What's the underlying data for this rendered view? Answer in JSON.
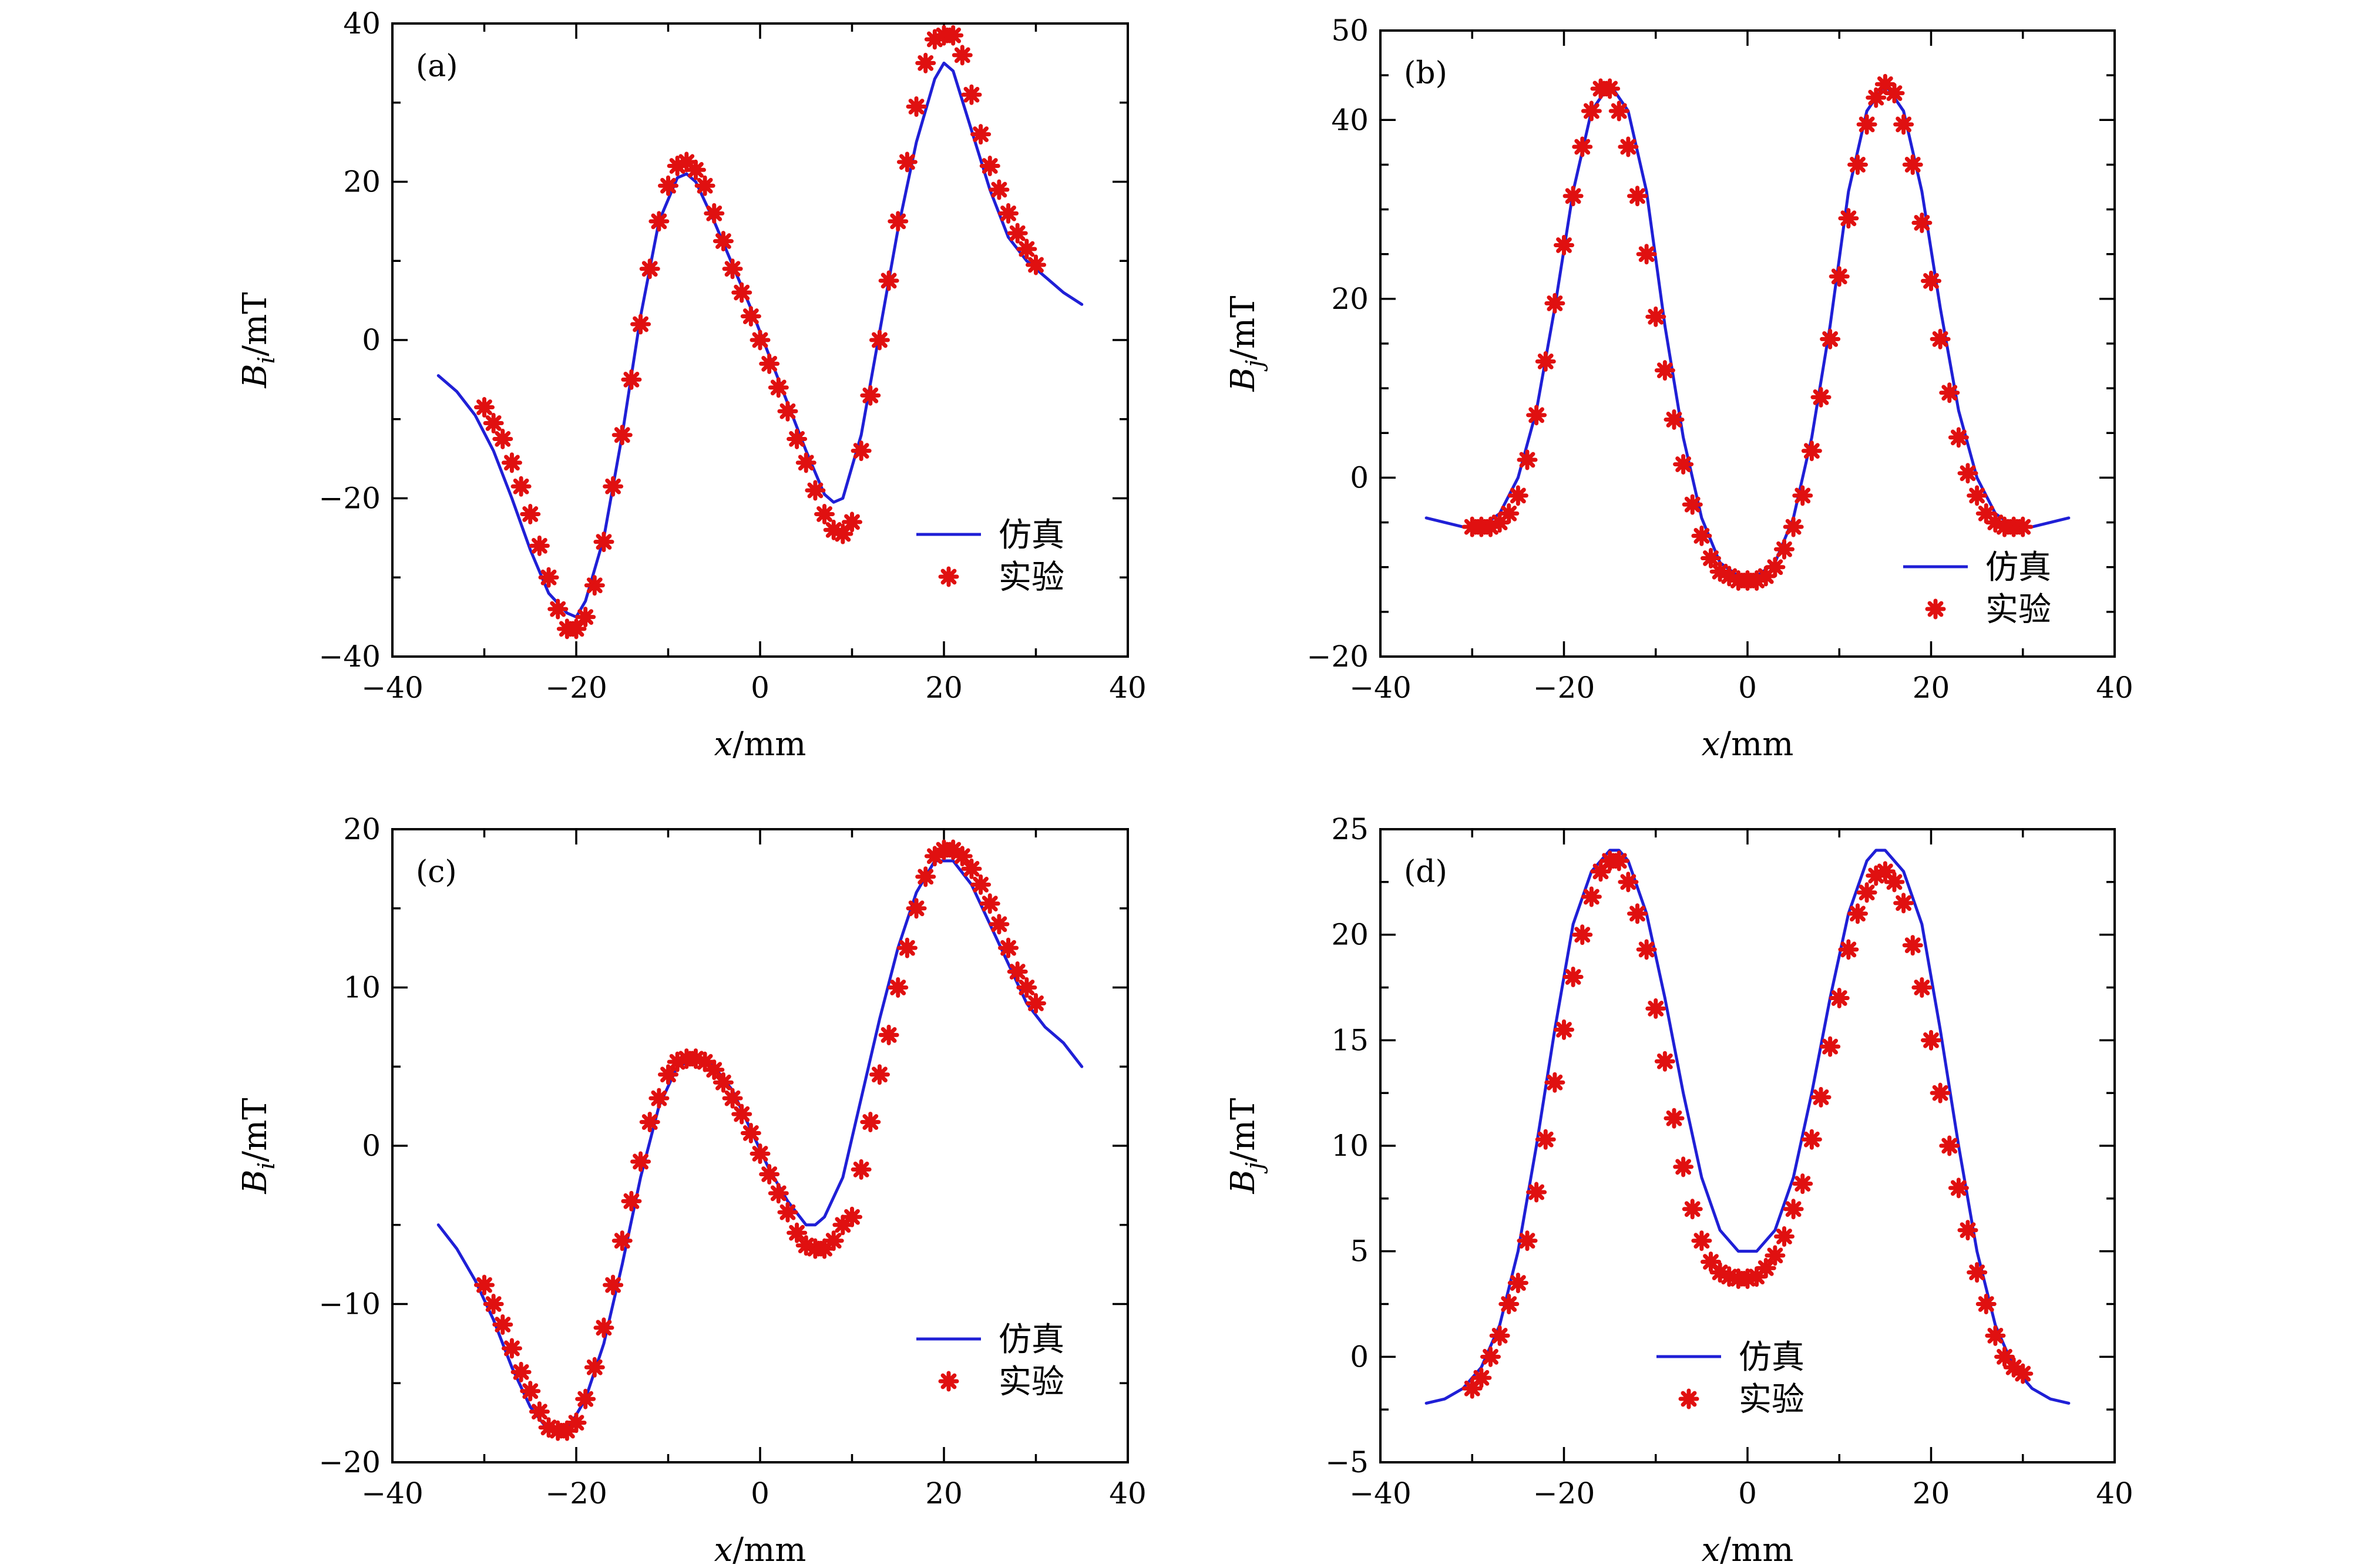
{
  "colors": {
    "simulation": "#1f1fd6",
    "experiment": "#e01010",
    "axis": "#000000"
  },
  "legend": {
    "line": "仿真",
    "marker": "实验"
  },
  "chart_data": [
    {
      "type": "line",
      "panel": "(a)",
      "xlabel": "x/mm",
      "ylabel": "Bi/mT",
      "ylabel_main": "B",
      "ylabel_sub": "i",
      "ylabel_unit": "/mT",
      "xlim": [
        -40,
        40
      ],
      "ylim": [
        -40,
        40
      ],
      "xticks": [
        -40,
        -20,
        0,
        20,
        40
      ],
      "xtick_labels": [
        "−40",
        "−20",
        "0",
        "20",
        "40"
      ],
      "yticks": [
        -40,
        -20,
        0,
        20,
        40
      ],
      "ytick_labels": [
        "−40",
        "−20",
        "0",
        "20",
        "40"
      ],
      "legend_position": "lower-right",
      "series": [
        {
          "name": "仿真",
          "style": "line",
          "x": [
            -35,
            -33,
            -31,
            -29,
            -27,
            -25,
            -23,
            -21,
            -20,
            -19,
            -17,
            -15,
            -13,
            -11,
            -9,
            -8,
            -7,
            -5,
            -3,
            -1,
            1,
            3,
            5,
            7,
            8,
            9,
            11,
            13,
            15,
            17,
            19,
            20,
            21,
            23,
            25,
            27,
            29,
            31,
            33,
            35
          ],
          "y": [
            -4.5,
            -6.5,
            -9.5,
            -14,
            -20,
            -26.5,
            -32,
            -34.5,
            -35,
            -33,
            -25,
            -12,
            3,
            15,
            20.5,
            21,
            20,
            15,
            9.5,
            4,
            -2,
            -8,
            -14,
            -19.5,
            -20.5,
            -20,
            -12,
            1,
            14,
            25,
            33,
            35,
            34,
            26.5,
            19,
            13,
            10,
            8,
            6,
            4.5
          ]
        },
        {
          "name": "实验",
          "style": "marker",
          "x": [
            -30,
            -29,
            -28,
            -27,
            -26,
            -25,
            -24,
            -23,
            -22,
            -21,
            -20,
            -19,
            -18,
            -17,
            -16,
            -15,
            -14,
            -13,
            -12,
            -11,
            -10,
            -9,
            -8,
            -7,
            -6,
            -5,
            -4,
            -3,
            -2,
            -1,
            0,
            1,
            2,
            3,
            4,
            5,
            6,
            7,
            8,
            9,
            10,
            11,
            12,
            13,
            14,
            15,
            16,
            17,
            18,
            19,
            20,
            21,
            22,
            23,
            24,
            25,
            26,
            27,
            28,
            29,
            30
          ],
          "y": [
            -8.5,
            -10.5,
            -12.5,
            -15.5,
            -18.5,
            -22,
            -26,
            -30,
            -34,
            -36.5,
            -36.5,
            -35,
            -31,
            -25.5,
            -18.5,
            -12,
            -5,
            2,
            9,
            15,
            19.5,
            22,
            22.5,
            21.5,
            19.5,
            16,
            12.5,
            9,
            6,
            3,
            0,
            -3,
            -6,
            -9,
            -12.5,
            -15.5,
            -19,
            -22,
            -24,
            -24.5,
            -23,
            -14,
            -7,
            0,
            7.5,
            15,
            22.5,
            29.5,
            35,
            38,
            38.5,
            38.5,
            36,
            31,
            26,
            22,
            19,
            16,
            13.5,
            11.5,
            9.5
          ]
        }
      ]
    },
    {
      "type": "line",
      "panel": "(b)",
      "xlabel": "x/mm",
      "ylabel": "Bj/mT",
      "ylabel_main": "B",
      "ylabel_sub": "j",
      "ylabel_unit": "/mT",
      "xlim": [
        -40,
        40
      ],
      "ylim": [
        -20,
        50
      ],
      "xticks": [
        -40,
        -20,
        0,
        20,
        40
      ],
      "xtick_labels": [
        "−40",
        "−20",
        "0",
        "20",
        "40"
      ],
      "yticks": [
        -20,
        0,
        20,
        40,
        50
      ],
      "ytick_labels": [
        "−20",
        "0",
        "20",
        "40",
        "50"
      ],
      "legend_position": "lower-right",
      "series": [
        {
          "name": "仿真",
          "style": "line",
          "x": [
            -35,
            -33,
            -31,
            -29,
            -27,
            -25,
            -23,
            -21,
            -19,
            -17,
            -15,
            -13,
            -11,
            -9,
            -7,
            -5,
            -3,
            -1,
            0,
            1,
            3,
            5,
            7,
            9,
            11,
            13,
            15,
            17,
            19,
            21,
            23,
            25,
            27,
            29,
            31,
            33,
            35
          ],
          "y": [
            -4.5,
            -5,
            -5.5,
            -5.5,
            -4,
            0,
            7.5,
            19,
            32,
            41,
            44,
            41,
            32,
            17,
            4.5,
            -4.5,
            -9.5,
            -11,
            -11.5,
            -11,
            -9.5,
            -4.5,
            4.5,
            17,
            32,
            41,
            44,
            41,
            32,
            19,
            7.5,
            0,
            -4,
            -5.5,
            -5.5,
            -5,
            -4.5
          ]
        },
        {
          "name": "实验",
          "style": "marker",
          "x": [
            -30,
            -29,
            -28,
            -27,
            -26,
            -25,
            -24,
            -23,
            -22,
            -21,
            -20,
            -19,
            -18,
            -17,
            -16,
            -15,
            -14,
            -13,
            -12,
            -11,
            -10,
            -9,
            -8,
            -7,
            -6,
            -5,
            -4,
            -3,
            -2,
            -1,
            0,
            1,
            2,
            3,
            4,
            5,
            6,
            7,
            8,
            9,
            10,
            11,
            12,
            13,
            14,
            15,
            16,
            17,
            18,
            19,
            20,
            21,
            22,
            23,
            24,
            25,
            26,
            27,
            28,
            29,
            30
          ],
          "y": [
            -5.5,
            -5.5,
            -5.5,
            -5,
            -4,
            -2,
            2,
            7,
            13,
            19.5,
            26,
            31.5,
            37,
            41,
            43.5,
            43.5,
            41,
            37,
            31.5,
            25,
            18,
            12,
            6.5,
            1.5,
            -3,
            -6.5,
            -9,
            -10.5,
            -11,
            -11.5,
            -11.5,
            -11.5,
            -11,
            -10,
            -8,
            -5.5,
            -2,
            3,
            9,
            15.5,
            22.5,
            29,
            35,
            39.5,
            42.5,
            44,
            43,
            39.5,
            35,
            28.5,
            22,
            15.5,
            9.5,
            4.5,
            0.5,
            -2,
            -4,
            -5,
            -5.5,
            -5.5,
            -5.5
          ]
        }
      ]
    },
    {
      "type": "line",
      "panel": "(c)",
      "xlabel": "x/mm",
      "ylabel": "Bi/mT",
      "ylabel_main": "B",
      "ylabel_sub": "i",
      "ylabel_unit": "/mT",
      "xlim": [
        -40,
        40
      ],
      "ylim": [
        -20,
        20
      ],
      "xticks": [
        -40,
        -20,
        0,
        20,
        40
      ],
      "xtick_labels": [
        "−40",
        "−20",
        "0",
        "20",
        "40"
      ],
      "yticks": [
        -20,
        -10,
        0,
        10,
        20
      ],
      "ytick_labels": [
        "−20",
        "−10",
        "0",
        "10",
        "20"
      ],
      "legend_position": "lower-right",
      "series": [
        {
          "name": "仿真",
          "style": "line",
          "x": [
            -35,
            -33,
            -31,
            -29,
            -27,
            -25,
            -23,
            -21,
            -19,
            -17,
            -15,
            -13,
            -11,
            -9,
            -7,
            -6,
            -5,
            -3,
            -1,
            1,
            3,
            5,
            6,
            7,
            9,
            11,
            13,
            15,
            17,
            19,
            21,
            23,
            25,
            27,
            29,
            31,
            33,
            35
          ],
          "y": [
            -5,
            -6.5,
            -8.5,
            -11,
            -14,
            -16.5,
            -18,
            -18,
            -16,
            -12.5,
            -7.5,
            -2,
            2.5,
            5,
            5.5,
            5.5,
            5,
            3.5,
            1,
            -1.5,
            -3.5,
            -5,
            -5,
            -4.5,
            -2,
            3,
            8,
            12.5,
            16,
            18,
            18,
            16.5,
            14,
            11.5,
            9,
            7.5,
            6.5,
            5
          ]
        },
        {
          "name": "实验",
          "style": "marker",
          "x": [
            -30,
            -29,
            -28,
            -27,
            -26,
            -25,
            -24,
            -23,
            -22,
            -21,
            -20,
            -19,
            -18,
            -17,
            -16,
            -15,
            -14,
            -13,
            -12,
            -11,
            -10,
            -9,
            -8,
            -7,
            -6,
            -5,
            -4,
            -3,
            -2,
            -1,
            0,
            1,
            2,
            3,
            4,
            5,
            6,
            7,
            8,
            9,
            10,
            11,
            12,
            13,
            14,
            15,
            16,
            17,
            18,
            19,
            20,
            21,
            22,
            23,
            24,
            25,
            26,
            27,
            28,
            29,
            30
          ],
          "y": [
            -8.8,
            -10,
            -11.3,
            -12.8,
            -14.3,
            -15.5,
            -16.8,
            -17.8,
            -18,
            -18,
            -17.5,
            -16,
            -14,
            -11.5,
            -8.8,
            -6,
            -3.5,
            -1,
            1.5,
            3,
            4.5,
            5.3,
            5.5,
            5.5,
            5.3,
            4.8,
            4,
            3,
            2,
            0.8,
            -0.5,
            -1.8,
            -3,
            -4.2,
            -5.5,
            -6.3,
            -6.5,
            -6.5,
            -6,
            -5,
            -4.5,
            -1.5,
            1.5,
            4.5,
            7,
            10,
            12.5,
            15,
            17,
            18.3,
            18.7,
            18.7,
            18.3,
            17.5,
            16.5,
            15.3,
            14,
            12.5,
            11,
            10,
            9
          ]
        }
      ]
    },
    {
      "type": "line",
      "panel": "(d)",
      "xlabel": "x/mm",
      "ylabel": "Bj/mT",
      "ylabel_main": "B",
      "ylabel_sub": "j",
      "ylabel_unit": "/mT",
      "xlim": [
        -40,
        40
      ],
      "ylim": [
        -5,
        25
      ],
      "xticks": [
        -40,
        -20,
        0,
        20,
        40
      ],
      "xtick_labels": [
        "−40",
        "−20",
        "0",
        "20",
        "40"
      ],
      "yticks": [
        -5,
        0,
        5,
        10,
        15,
        20,
        25
      ],
      "ytick_labels": [
        "−5",
        "0",
        "5",
        "10",
        "15",
        "20",
        "25"
      ],
      "legend_position": "lower-left-center",
      "series": [
        {
          "name": "仿真",
          "style": "line",
          "x": [
            -35,
            -33,
            -31,
            -29,
            -27,
            -25,
            -23,
            -21,
            -19,
            -17,
            -15,
            -14,
            -13,
            -11,
            -9,
            -7,
            -5,
            -3,
            -1,
            0,
            1,
            3,
            5,
            7,
            9,
            11,
            13,
            14,
            15,
            17,
            19,
            21,
            23,
            25,
            27,
            29,
            31,
            33,
            35
          ],
          "y": [
            -2.2,
            -2,
            -1.5,
            -0.5,
            1.5,
            5,
            10,
            15.5,
            20.5,
            23,
            24,
            24,
            23.5,
            21,
            17,
            12.5,
            8.5,
            6,
            5,
            5,
            5,
            6,
            8.5,
            12.5,
            17,
            21,
            23.5,
            24,
            24,
            23,
            20.5,
            15.5,
            10,
            5,
            1.5,
            -0.5,
            -1.5,
            -2,
            -2.2
          ]
        },
        {
          "name": "实验",
          "style": "marker",
          "x": [
            -30,
            -29,
            -28,
            -27,
            -26,
            -25,
            -24,
            -23,
            -22,
            -21,
            -20,
            -19,
            -18,
            -17,
            -16,
            -15,
            -14,
            -13,
            -12,
            -11,
            -10,
            -9,
            -8,
            -7,
            -6,
            -5,
            -4,
            -3,
            -2,
            -1,
            0,
            1,
            2,
            3,
            4,
            5,
            6,
            7,
            8,
            9,
            10,
            11,
            12,
            13,
            14,
            15,
            16,
            17,
            18,
            19,
            20,
            21,
            22,
            23,
            24,
            25,
            26,
            27,
            28,
            29,
            30
          ],
          "y": [
            -1.5,
            -1,
            0,
            1,
            2.5,
            3.5,
            5.5,
            7.8,
            10.3,
            13,
            15.5,
            18,
            20,
            21.8,
            23,
            23.5,
            23.5,
            22.5,
            21,
            19.3,
            16.5,
            14,
            11.3,
            9,
            7,
            5.5,
            4.5,
            4,
            3.8,
            3.7,
            3.7,
            3.8,
            4.2,
            4.8,
            5.7,
            7,
            8.2,
            10.3,
            12.3,
            14.7,
            17,
            19.3,
            21,
            22,
            22.8,
            23,
            22.5,
            21.5,
            19.5,
            17.5,
            15,
            12.5,
            10,
            8,
            6,
            4,
            2.5,
            1,
            0,
            -0.5,
            -0.8
          ]
        }
      ]
    }
  ]
}
